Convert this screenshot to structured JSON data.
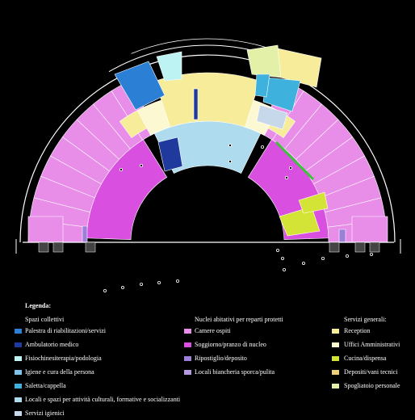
{
  "legend": {
    "title": "Legenda:",
    "groups": [
      {
        "heading": "Spazi collettivi",
        "items": [
          {
            "label": "Palestra di riabilitazioni/servizi",
            "color": "#2b7fd4"
          },
          {
            "label": "Ambulatorio medico",
            "color": "#1f3a9c"
          },
          {
            "label": "Fisiochinesiterapia/podologia",
            "color": "#bdf3f3"
          },
          {
            "label": "Igiene e cura della persona",
            "color": "#7fc3e8"
          },
          {
            "label": "Saletta/cappella",
            "color": "#3fb1dd"
          },
          {
            "label": "Locali e spazi per attività culturali, formative e socializzanti",
            "color": "#aedcee"
          },
          {
            "label": "Servizi igienici",
            "color": "#c7d8ea"
          }
        ]
      },
      {
        "heading": "Nuclei abitativi per reparti protetti",
        "items": [
          {
            "label": "Camere ospiti",
            "color": "#e88de8"
          },
          {
            "label": "Soggiorno/pranzo di nucleo",
            "color": "#d94fe0"
          },
          {
            "label": "Ripostiglio/deposito",
            "color": "#9b7fd8"
          },
          {
            "label": "Locali biancheria sporca/pulita",
            "color": "#b49ae0"
          }
        ]
      },
      {
        "heading": "Servizi generali:",
        "items": [
          {
            "label": "Reception",
            "color": "#f6ec9a"
          },
          {
            "label": "Uffici Amministrativi",
            "color": "#fbf8d2"
          },
          {
            "label": "Cucina/dispensa",
            "color": "#d4e436"
          },
          {
            "label": "Depositi/vani tecnici",
            "color": "#ecd17a"
          },
          {
            "label": "Spogliatoio personale",
            "color": "#e3f0a8"
          }
        ]
      }
    ]
  },
  "plan": {
    "colors": {
      "rooms": "#e88de8",
      "living": "#d94fe0",
      "central": "#aedcee",
      "reception": "#f6ec9a",
      "offices": "#fbf8d2",
      "gym": "#2b7fd4",
      "chapel": "#3fb1dd",
      "kitchen": "#d4e436",
      "changing": "#e3f0a8",
      "storage": "#9b7fd8",
      "physio": "#bdf3f3",
      "clinic": "#1f3a9c",
      "hygiene": "#c7d8ea"
    }
  }
}
